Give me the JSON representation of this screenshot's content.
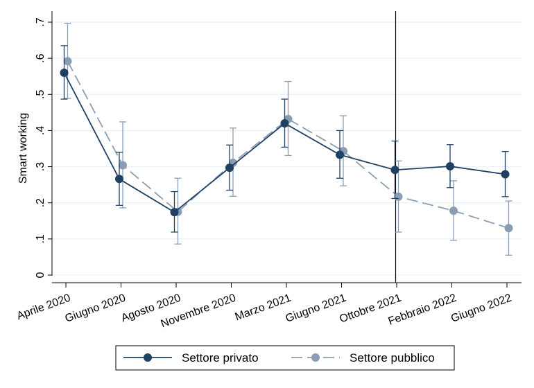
{
  "chart_data": {
    "type": "line",
    "title": "",
    "xlabel": "",
    "ylabel": "Smart working",
    "ylim": [
      0,
      0.7
    ],
    "yticks": [
      {
        "value": 0,
        "label": "0"
      },
      {
        "value": 0.1,
        "label": ".1"
      },
      {
        "value": 0.2,
        "label": ".2"
      },
      {
        "value": 0.3,
        "label": ".3"
      },
      {
        "value": 0.4,
        "label": ".4"
      },
      {
        "value": 0.5,
        "label": ".5"
      },
      {
        "value": 0.6,
        "label": ".6"
      },
      {
        "value": 0.7,
        "label": ".7"
      }
    ],
    "categories": [
      "Aprile 2020",
      "Giugno 2020",
      "Agosto 2020",
      "Novembre 2020",
      "Marzo 2021",
      "Giugno 2021",
      "Ottobre 2021",
      "Febbraio 2022",
      "Giugno 2022"
    ],
    "grid": true,
    "legend_position": "bottom",
    "reference_line_category": "Ottobre 2021",
    "series": [
      {
        "name": "Settore privato",
        "color": "#1f3f63",
        "line_style": "solid",
        "values": [
          0.56,
          0.266,
          0.174,
          0.297,
          0.42,
          0.333,
          0.291,
          0.301,
          0.279
        ],
        "ci_low": [
          0.487,
          0.193,
          0.119,
          0.235,
          0.354,
          0.268,
          0.212,
          0.242,
          0.217
        ],
        "ci_high": [
          0.635,
          0.34,
          0.231,
          0.36,
          0.487,
          0.4,
          0.371,
          0.361,
          0.342
        ]
      },
      {
        "name": "Settore pubblico",
        "color": "#8a9db3",
        "line_style": "dashed",
        "values": [
          0.592,
          0.304,
          0.175,
          0.311,
          0.432,
          0.343,
          0.217,
          0.178,
          0.13
        ],
        "ci_low": [
          0.489,
          0.186,
          0.086,
          0.218,
          0.331,
          0.247,
          0.119,
          0.096,
          0.055
        ],
        "ci_high": [
          0.697,
          0.424,
          0.268,
          0.407,
          0.536,
          0.441,
          0.316,
          0.261,
          0.205
        ]
      }
    ]
  }
}
